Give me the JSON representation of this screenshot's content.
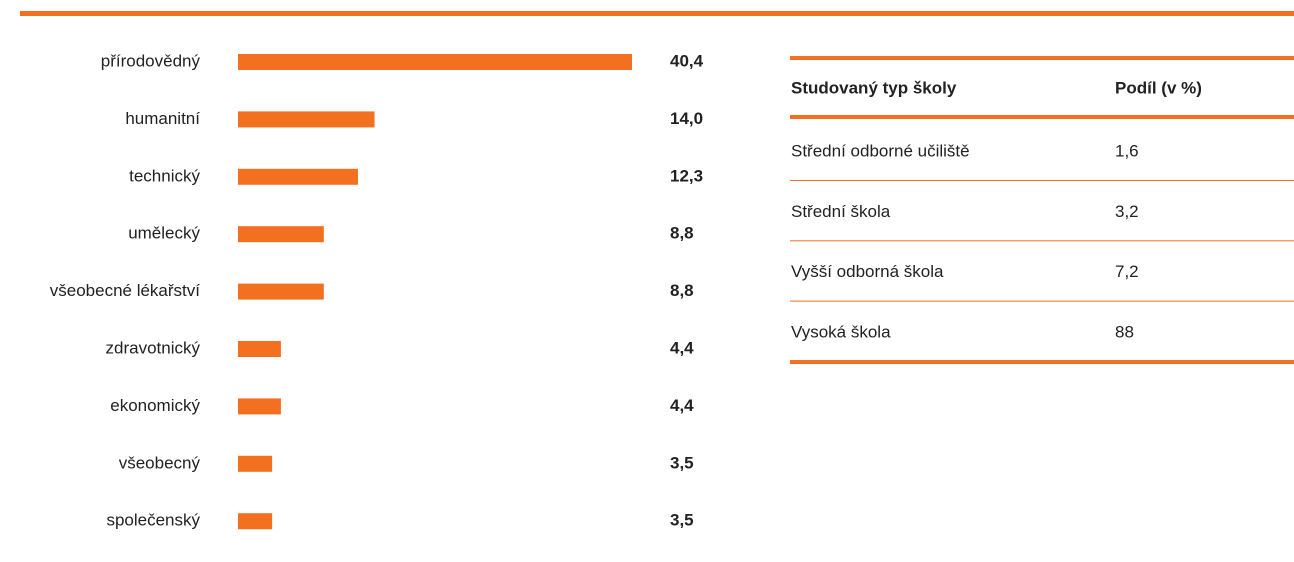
{
  "chart_data": {
    "type": "bar",
    "orientation": "horizontal",
    "color": "#f37021",
    "categories": [
      "přírodovědný",
      "humanitní",
      "technický",
      "umělecký",
      "všeobecné lékařství",
      "zdravotnický",
      "ekonomický",
      "všeobecný",
      "společenský"
    ],
    "values": [
      40.4,
      14.0,
      12.3,
      8.8,
      8.8,
      4.4,
      4.4,
      3.5,
      3.5
    ],
    "value_labels": [
      "40,4",
      "14,0",
      "12,3",
      "8,8",
      "8,8",
      "4,4",
      "4,4",
      "3,5",
      "3,5"
    ]
  },
  "table": {
    "header": [
      "Studovaný typ školy",
      "Podíl (v %)"
    ],
    "rows": [
      [
        "Střední odborné učiliště",
        "1,6"
      ],
      [
        "Střední škola",
        "3,2"
      ],
      [
        "Vyšší odborná škola",
        "7,2"
      ],
      [
        "Vysoká škola",
        "88"
      ]
    ]
  }
}
